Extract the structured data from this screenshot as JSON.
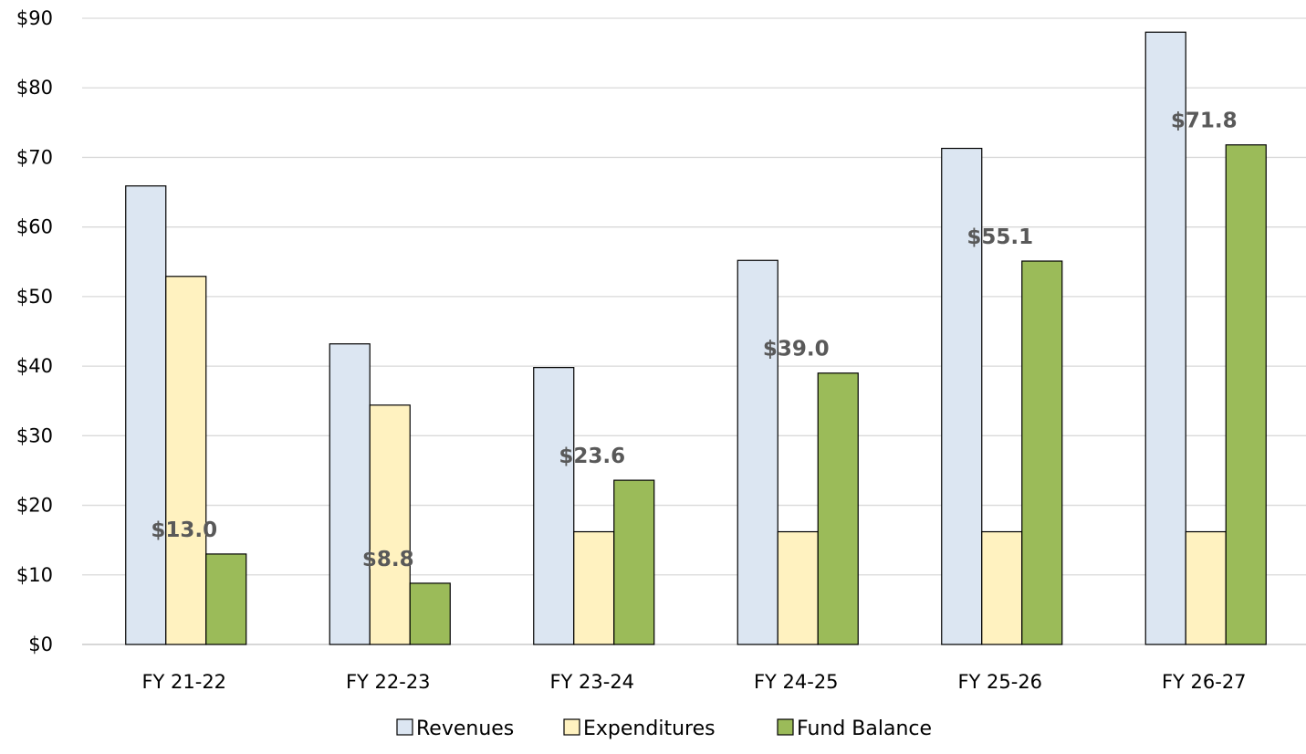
{
  "chart_data": {
    "type": "bar",
    "categories": [
      "FY 21-22",
      "FY 22-23",
      "FY 23-24",
      "FY 24-25",
      "FY 25-26",
      "FY 26-27"
    ],
    "series": [
      {
        "name": "Revenues",
        "color": "#DCE6F2",
        "values": [
          65.9,
          43.2,
          39.8,
          55.2,
          71.3,
          88.0
        ]
      },
      {
        "name": "Expenditures",
        "color": "#FFF2C0",
        "values": [
          52.9,
          34.4,
          16.2,
          16.2,
          16.2,
          16.2
        ]
      },
      {
        "name": "Fund Balance",
        "color": "#9BBB59",
        "values": [
          13.0,
          8.8,
          23.6,
          39.0,
          55.1,
          71.8
        ]
      }
    ],
    "data_labels": {
      "series": "Fund Balance",
      "texts": [
        "$13.0",
        "$8.8",
        "$23.6",
        "$39.0",
        "$55.1",
        "$71.8"
      ]
    },
    "y_tick_labels": [
      "$0",
      "$10",
      "$20",
      "$30",
      "$40",
      "$50",
      "$60",
      "$70",
      "$80",
      "$90"
    ],
    "ylim": [
      0,
      90
    ],
    "y_tick_step": 10,
    "grid": true,
    "legend": "bottom"
  }
}
